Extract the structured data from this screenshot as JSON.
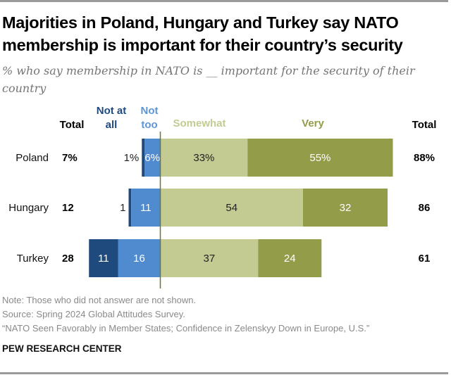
{
  "header": {
    "title": "Majorities in Poland, Hungary and Turkey say NATO membership is important for their country’s security",
    "subtitle": "% who say membership in NATO is __ important for the security of their country"
  },
  "colors": {
    "not_at_all": "#1f4a7d",
    "not_too": "#508bd0",
    "somewhat": "#c4cb92",
    "very": "#939c49",
    "not_at_all_label": "#1f4a7d",
    "not_too_label": "#5d96d6",
    "somewhat_label": "#c4cb92",
    "very_label": "#939c49",
    "zero_line": "#6f7530"
  },
  "chart_data": {
    "type": "bar",
    "orientation": "horizontal-diverging",
    "title": "Majorities in Poland, Hungary and Turkey say NATO membership is important for their country’s security",
    "subtitle": "% who say membership in NATO is __ important for the security of their country",
    "categories": [
      "Poland",
      "Hungary",
      "Turkey"
    ],
    "series": [
      {
        "name": "Not at all",
        "side": "negative",
        "values": [
          1,
          1,
          11
        ],
        "labels": [
          "1%",
          "1",
          "11"
        ]
      },
      {
        "name": "Not too",
        "side": "negative",
        "values": [
          6,
          11,
          16
        ],
        "labels": [
          "6%",
          "11",
          "16"
        ]
      },
      {
        "name": "Somewhat",
        "side": "positive",
        "values": [
          33,
          54,
          37
        ],
        "labels": [
          "33%",
          "54",
          "37"
        ]
      },
      {
        "name": "Very",
        "side": "positive",
        "values": [
          55,
          32,
          24
        ],
        "labels": [
          "55%",
          "32",
          "24"
        ]
      }
    ],
    "totals_negative": {
      "header": "Total",
      "labels": [
        "7%",
        "12",
        "28"
      ]
    },
    "totals_positive": {
      "header": "Total",
      "labels": [
        "88%",
        "86",
        "61"
      ]
    },
    "legend_headers": [
      "Not at all",
      "Not too",
      "Somewhat",
      "Very"
    ],
    "legend_placement": "top"
  },
  "footer": {
    "note": "Note: Those who did not answer are not shown.",
    "source": "Source: Spring 2024 Global Attitudes Survey.",
    "report": "“NATO Seen Favorably in Member States; Confidence in Zelenskyy Down in Europe, U.S.”",
    "brand": "PEW RESEARCH CENTER"
  }
}
